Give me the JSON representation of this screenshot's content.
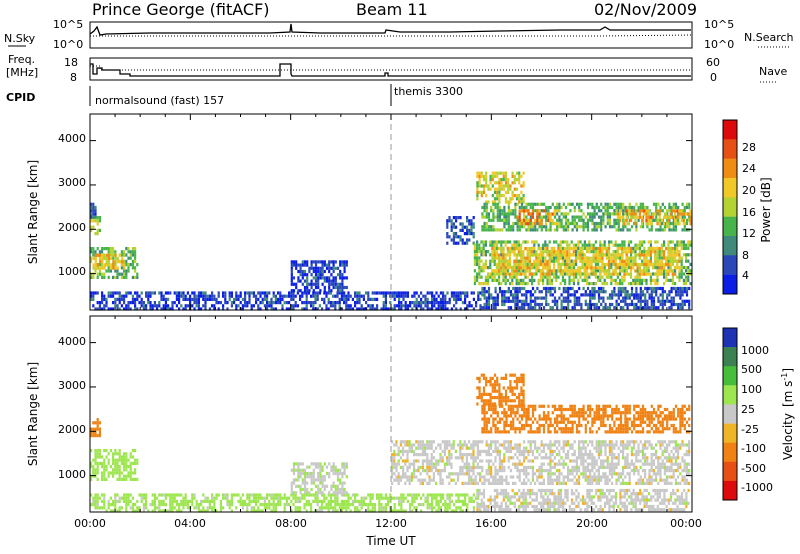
{
  "header": {
    "station": "Prince George (fitACF)",
    "beam": "Beam 11",
    "date": "02/Nov/2009"
  },
  "noise_panel": {
    "left_label": "N.Sky",
    "right_label": "N.Search",
    "y_ticks_left": [
      "10^5",
      "10^0"
    ],
    "y_ticks_right": [
      "10^5",
      "10^0"
    ]
  },
  "freq_panel": {
    "left_label_1": "Freq.",
    "left_label_2": "[MHz]",
    "right_label": "Nave",
    "y_ticks_left": [
      "18",
      "8"
    ],
    "y_ticks_right": [
      "60",
      "0"
    ]
  },
  "cpid_panel": {
    "label": "CPID",
    "modes": [
      "normalsound (fast) 157",
      "themis 3300"
    ]
  },
  "axes": {
    "ylabel": "Slant Range [km]",
    "xlabel": "Time UT",
    "x_ticks": [
      "00:00",
      "04:00",
      "08:00",
      "12:00",
      "16:00",
      "20:00",
      "00:00"
    ],
    "y_ticks": [
      "1000",
      "2000",
      "3000",
      "4000"
    ]
  },
  "power_colorbar": {
    "label": "Power [dB]",
    "ticks": [
      "4",
      "8",
      "12",
      "16",
      "20",
      "24",
      "28"
    ],
    "colors": [
      "#0a1ee6",
      "#2a48b8",
      "#3f8a7a",
      "#46b44a",
      "#b4d232",
      "#f0c828",
      "#f08c14",
      "#e65014",
      "#dc0a0a"
    ]
  },
  "velocity_colorbar": {
    "label_main": "Velocity",
    "label_unit": "[m s",
    "label_exp": "-1",
    "label_close": "]",
    "ticks": [
      "1000",
      "500",
      "100",
      "25",
      "-25",
      "-100",
      "-500",
      "-1000"
    ],
    "colors": [
      "#1e32b4",
      "#3c8250",
      "#46be3c",
      "#9ee650",
      "#c8c8c8",
      "#f0b428",
      "#f08214",
      "#e65014",
      "#dc0a0a"
    ]
  },
  "chart_data": {
    "type": "heatmap",
    "x_range_hours": [
      0,
      24
    ],
    "y_range_km": [
      180,
      4600
    ],
    "mode_change_hour": 12,
    "power_regions": [
      {
        "t0": 0.0,
        "t1": 0.4,
        "r0": 1900,
        "r1": 2300,
        "level": 18
      },
      {
        "t0": 0.0,
        "t1": 0.2,
        "r0": 2300,
        "r1": 2600,
        "level": 8
      },
      {
        "t0": 0.0,
        "t1": 1.9,
        "r0": 950,
        "r1": 1600,
        "level": 14
      },
      {
        "t0": 0.1,
        "t1": 1.4,
        "r0": 1150,
        "r1": 1450,
        "level": 22
      },
      {
        "t0": 0.0,
        "t1": 15.6,
        "r0": 200,
        "r1": 600,
        "level": 4
      },
      {
        "t0": 8.0,
        "t1": 10.2,
        "r0": 600,
        "r1": 1300,
        "level": 4
      },
      {
        "t0": 14.2,
        "t1": 15.3,
        "r0": 1700,
        "r1": 2300,
        "level": 6
      },
      {
        "t0": 15.4,
        "t1": 17.3,
        "r0": 2600,
        "r1": 3300,
        "level": 20
      },
      {
        "t0": 15.6,
        "t1": 23.9,
        "r0": 2000,
        "r1": 2600,
        "level": 14
      },
      {
        "t0": 17.0,
        "t1": 18.6,
        "r0": 2150,
        "r1": 2450,
        "level": 26
      },
      {
        "t0": 21.0,
        "t1": 23.9,
        "r0": 2100,
        "r1": 2450,
        "level": 24
      },
      {
        "t0": 15.3,
        "t1": 23.9,
        "r0": 750,
        "r1": 1750,
        "level": 16
      },
      {
        "t0": 16.0,
        "t1": 23.5,
        "r0": 1000,
        "r1": 1600,
        "level": 22
      },
      {
        "t0": 15.6,
        "t1": 23.9,
        "r0": 250,
        "r1": 700,
        "level": 6
      }
    ],
    "velocity_regions": [
      {
        "t0": 0.0,
        "t1": 0.4,
        "r0": 1900,
        "r1": 2300,
        "velocity": -300
      },
      {
        "t0": 0.0,
        "t1": 1.9,
        "r0": 950,
        "r1": 1600,
        "velocity": 60
      },
      {
        "t0": 0.0,
        "t1": 15.6,
        "r0": 200,
        "r1": 600,
        "velocity": 50
      },
      {
        "t0": 8.0,
        "t1": 10.2,
        "r0": 600,
        "r1": 1300,
        "velocity": 10
      },
      {
        "t0": 12.0,
        "t1": 23.9,
        "r0": 800,
        "r1": 1800,
        "velocity": 0
      },
      {
        "t0": 15.4,
        "t1": 17.3,
        "r0": 2600,
        "r1": 3300,
        "velocity": -250
      },
      {
        "t0": 15.6,
        "t1": 23.9,
        "r0": 2000,
        "r1": 2600,
        "velocity": -200
      },
      {
        "t0": 15.4,
        "t1": 23.9,
        "r0": 250,
        "r1": 700,
        "velocity": 0
      }
    ]
  }
}
